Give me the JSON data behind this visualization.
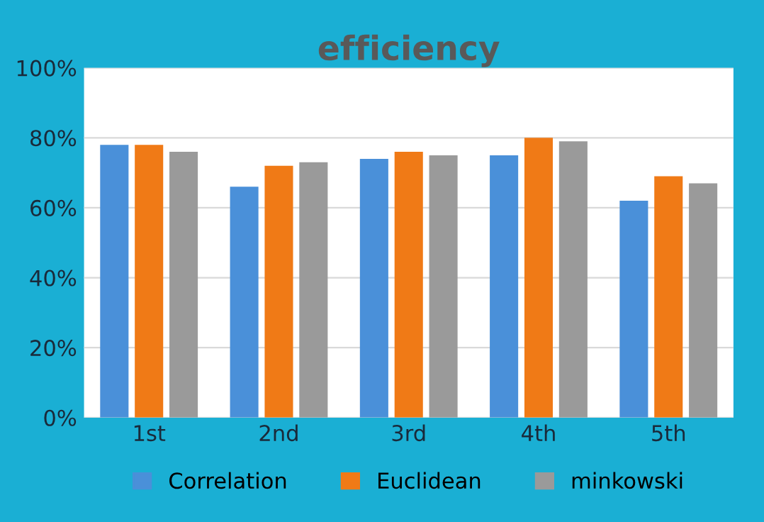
{
  "chart_data": {
    "type": "bar",
    "title": "efficiency",
    "categories": [
      "1st",
      "2nd",
      "3rd",
      "4th",
      "5th"
    ],
    "series": [
      {
        "name": "Correlation",
        "color": "#4a90d9",
        "values": [
          78,
          66,
          74,
          75,
          62
        ]
      },
      {
        "name": "Euclidean",
        "color": "#f07a16",
        "values": [
          78,
          72,
          76,
          80,
          69
        ]
      },
      {
        "name": "minkowski",
        "color": "#9a9a9a",
        "values": [
          76,
          73,
          75,
          79,
          67
        ]
      }
    ],
    "ylim": [
      0,
      100
    ],
    "yticks": [
      {
        "value": 0,
        "label": "0%"
      },
      {
        "value": 20,
        "label": "20%"
      },
      {
        "value": 40,
        "label": "40%"
      },
      {
        "value": 60,
        "label": "60%"
      },
      {
        "value": 80,
        "label": "80%"
      },
      {
        "value": 100,
        "label": "100%"
      }
    ],
    "grid": "y",
    "legend": "bottom"
  }
}
